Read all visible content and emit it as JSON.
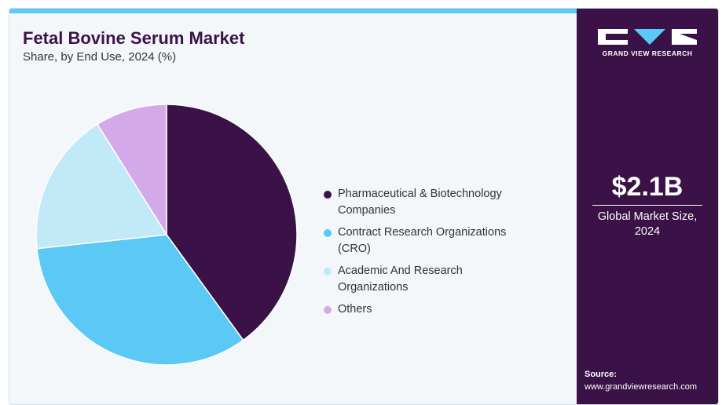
{
  "chart_data": {
    "type": "pie",
    "title": "Fetal Bovine Serum Market",
    "subtitle": "Share, by End Use, 2024 (%)",
    "categories": [
      "Pharmaceutical & Biotechnology Companies",
      "Contract Research Organizations (CRO)",
      "Academic And Research Organizations",
      "Others"
    ],
    "values": [
      40,
      33.3,
      17.8,
      8.9
    ],
    "colors": [
      "#3a1247",
      "#5bc8f5",
      "#c2e9f8",
      "#d3a9ea"
    ]
  },
  "sidebar": {
    "brand": "GRAND VIEW RESEARCH",
    "market_size": "$2.1B",
    "market_size_label": "Global Market Size, 2024",
    "source_label": "Source:",
    "source_url": "www.grandviewresearch.com"
  }
}
